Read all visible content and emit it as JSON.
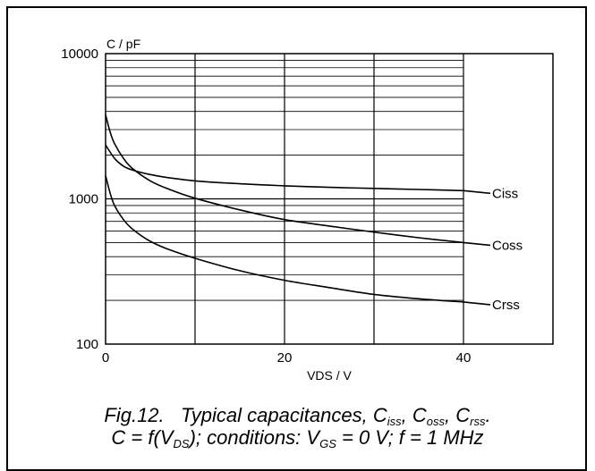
{
  "chart_data": {
    "type": "line",
    "ylabel": "C / pF",
    "xlabel": "VDS / V",
    "xlim": [
      0,
      50
    ],
    "ylim": [
      100,
      10000
    ],
    "yscale": "log",
    "x_ticks": [
      0,
      20,
      40
    ],
    "x_tick_labels": [
      "0",
      "20",
      "40"
    ],
    "y_ticks": [
      100,
      1000,
      10000
    ],
    "y_tick_labels": [
      "100",
      "1000",
      "10000"
    ],
    "grid": "vertical lines every 10 V up to 40 V; horizontal lines at each 100/1000 subdivision up to 40 V",
    "series": [
      {
        "name": "Ciss",
        "x": [
          0,
          1,
          2,
          3,
          5,
          7,
          10,
          15,
          20,
          25,
          30,
          35,
          40
        ],
        "y": [
          2350,
          1900,
          1680,
          1580,
          1470,
          1400,
          1330,
          1270,
          1230,
          1200,
          1180,
          1160,
          1140
        ]
      },
      {
        "name": "Coss",
        "x": [
          0,
          0.5,
          1,
          2,
          3,
          5,
          7,
          10,
          15,
          20,
          25,
          30,
          35,
          40
        ],
        "y": [
          3800,
          2900,
          2400,
          1900,
          1620,
          1330,
          1170,
          1010,
          840,
          720,
          650,
          590,
          540,
          500
        ]
      },
      {
        "name": "Crss",
        "x": [
          0,
          0.5,
          1,
          2,
          3,
          5,
          7,
          10,
          15,
          20,
          25,
          30,
          35,
          40
        ],
        "y": [
          1450,
          1100,
          900,
          720,
          620,
          510,
          450,
          390,
          320,
          275,
          245,
          220,
          205,
          195
        ]
      }
    ]
  },
  "caption": {
    "line1": {
      "fig": "Fig.12.",
      "text": "Typical capacitances,",
      "c_iss_base": "C",
      "c_iss_sub": "iss",
      "sep1": ",",
      "c_oss_base": "C",
      "c_oss_sub": "oss",
      "sep2": ",",
      "c_rss_base": "C",
      "c_rss_sub": "rss",
      "end": "."
    },
    "line2": {
      "pre": "C = f(V",
      "vds_sub": "DS",
      "mid": "); conditions: V",
      "vgs_sub": "GS",
      "post": "= 0 V; f = 1 MHz"
    }
  }
}
